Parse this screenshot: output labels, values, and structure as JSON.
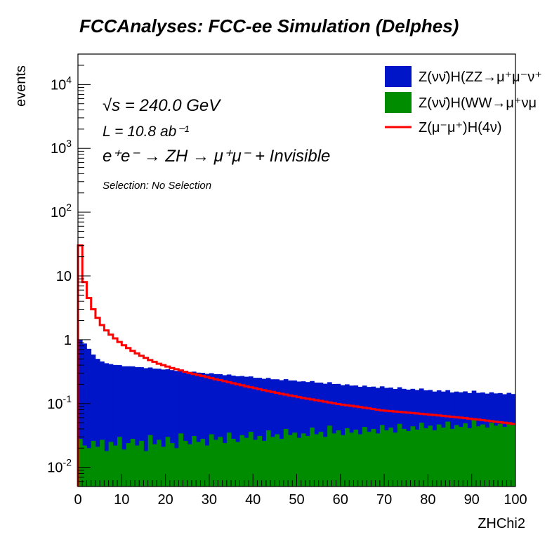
{
  "colors": {
    "zz": "#0015c8",
    "ww": "#008c00",
    "signal": "#ff0000",
    "frame": "#000000"
  },
  "chart_data": {
    "type": "histogram",
    "title": "FCCAnalyses: FCC-ee Simulation (Delphes)",
    "xlabel": "ZHChi2",
    "ylabel": "events",
    "xlim": [
      0,
      100
    ],
    "ylim": [
      0.005,
      30000
    ],
    "yscale": "log",
    "stacked": true,
    "bins": 100,
    "xticks": [
      "0",
      "10",
      "20",
      "30",
      "40",
      "50",
      "60",
      "70",
      "80",
      "90",
      "100"
    ],
    "yticks": [
      "10^-2",
      "10^-1",
      "1",
      "10",
      "10^2",
      "10^3",
      "10^4"
    ],
    "annotations": {
      "sqrt_s": "√s = 240.0 GeV",
      "lumi": "L = 10.8 ab⁻¹",
      "process": "e⁺e⁻ → ZH → μ⁺μ⁻ + Invisible",
      "selection": "Selection: No Selection"
    },
    "legend": {
      "position": "top-right",
      "entries": [
        {
          "label": "Z(νν̄)H(ZZ→μ⁺μ⁻ν⁺",
          "style": "fill",
          "color": "#0015c8"
        },
        {
          "label": "Z(νν̄)H(WW→μ⁺νμ",
          "style": "fill",
          "color": "#008c00"
        },
        {
          "label": "Z(μ⁻μ⁺)H(4ν)",
          "style": "line",
          "color": "#ff0000"
        }
      ]
    },
    "series": [
      {
        "style": "stacked-fill",
        "color": "#008c00",
        "values": [
          0.028,
          0.022,
          0.02,
          0.026,
          0.021,
          0.027,
          0.018,
          0.025,
          0.022,
          0.03,
          0.019,
          0.024,
          0.028,
          0.022,
          0.026,
          0.018,
          0.032,
          0.023,
          0.027,
          0.021,
          0.03,
          0.024,
          0.02,
          0.034,
          0.026,
          0.023,
          0.031,
          0.025,
          0.028,
          0.022,
          0.033,
          0.027,
          0.03,
          0.024,
          0.035,
          0.028,
          0.025,
          0.032,
          0.029,
          0.036,
          0.027,
          0.031,
          0.026,
          0.038,
          0.03,
          0.033,
          0.028,
          0.04,
          0.032,
          0.035,
          0.029,
          0.034,
          0.031,
          0.042,
          0.033,
          0.036,
          0.03,
          0.045,
          0.034,
          0.038,
          0.032,
          0.041,
          0.035,
          0.039,
          0.033,
          0.043,
          0.036,
          0.04,
          0.034,
          0.046,
          0.038,
          0.042,
          0.035,
          0.048,
          0.04,
          0.037,
          0.044,
          0.039,
          0.05,
          0.041,
          0.045,
          0.038,
          0.047,
          0.042,
          0.052,
          0.04,
          0.046,
          0.043,
          0.049,
          0.041,
          0.055,
          0.044,
          0.047,
          0.042,
          0.05,
          0.045,
          0.048,
          0.043,
          0.051,
          0.046
        ]
      },
      {
        "style": "stacked-fill",
        "color": "#0015c8",
        "values": [
          0.97,
          0.85,
          0.7,
          0.56,
          0.48,
          0.43,
          0.41,
          0.39,
          0.38,
          0.37,
          0.365,
          0.36,
          0.355,
          0.35,
          0.345,
          0.34,
          0.335,
          0.33,
          0.325,
          0.32,
          0.315,
          0.31,
          0.305,
          0.3,
          0.295,
          0.29,
          0.285,
          0.28,
          0.275,
          0.27,
          0.266,
          0.262,
          0.258,
          0.254,
          0.25,
          0.246,
          0.242,
          0.238,
          0.234,
          0.23,
          0.226,
          0.222,
          0.218,
          0.214,
          0.21,
          0.207,
          0.204,
          0.201,
          0.198,
          0.195,
          0.192,
          0.189,
          0.186,
          0.183,
          0.18,
          0.177,
          0.174,
          0.171,
          0.168,
          0.165,
          0.162,
          0.159,
          0.156,
          0.153,
          0.15,
          0.148,
          0.146,
          0.144,
          0.142,
          0.14,
          0.138,
          0.136,
          0.134,
          0.132,
          0.13,
          0.128,
          0.126,
          0.124,
          0.122,
          0.12,
          0.118,
          0.116,
          0.114,
          0.112,
          0.11,
          0.109,
          0.108,
          0.107,
          0.106,
          0.105,
          0.104,
          0.103,
          0.102,
          0.101,
          0.1,
          0.099,
          0.098,
          0.097,
          0.096,
          0.095
        ]
      },
      {
        "style": "step-line",
        "color": "#ff0000",
        "values": [
          30.0,
          8.0,
          4.5,
          3.0,
          2.2,
          1.7,
          1.4,
          1.2,
          1.05,
          0.92,
          0.82,
          0.74,
          0.67,
          0.61,
          0.56,
          0.52,
          0.48,
          0.45,
          0.42,
          0.4,
          0.38,
          0.36,
          0.345,
          0.33,
          0.315,
          0.3,
          0.29,
          0.28,
          0.27,
          0.26,
          0.25,
          0.24,
          0.232,
          0.224,
          0.216,
          0.208,
          0.2,
          0.193,
          0.186,
          0.18,
          0.174,
          0.168,
          0.162,
          0.157,
          0.152,
          0.147,
          0.142,
          0.138,
          0.134,
          0.13,
          0.126,
          0.122,
          0.119,
          0.116,
          0.113,
          0.11,
          0.107,
          0.104,
          0.101,
          0.098,
          0.096,
          0.094,
          0.092,
          0.09,
          0.088,
          0.086,
          0.084,
          0.082,
          0.08,
          0.078,
          0.077,
          0.076,
          0.075,
          0.074,
          0.073,
          0.072,
          0.071,
          0.07,
          0.069,
          0.068,
          0.067,
          0.066,
          0.065,
          0.064,
          0.063,
          0.062,
          0.061,
          0.06,
          0.059,
          0.058,
          0.057,
          0.056,
          0.055,
          0.054,
          0.053,
          0.052,
          0.051,
          0.05,
          0.049,
          0.048
        ]
      }
    ]
  }
}
